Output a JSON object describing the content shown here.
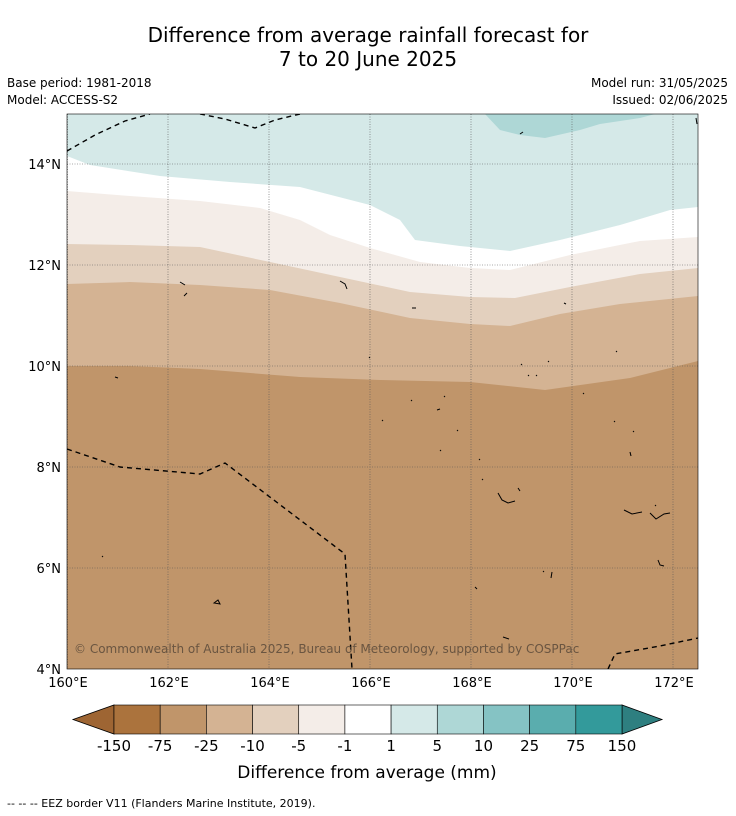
{
  "title": {
    "line1": "Difference from average rainfall forecast for",
    "line2": "7 to 20 June 2025"
  },
  "meta": {
    "base_period": "Base period: 1981-2018",
    "model": "Model: ACCESS-S2",
    "model_run": "Model run: 31/05/2025",
    "issued": "Issued: 02/06/2025"
  },
  "map": {
    "lon_range": [
      160,
      172.5
    ],
    "lat_range": [
      4,
      15
    ],
    "lat_ticks": [
      {
        "value": 14,
        "label": "14°N"
      },
      {
        "value": 12,
        "label": "12°N"
      },
      {
        "value": 10,
        "label": "10°N"
      },
      {
        "value": 8,
        "label": "8°N"
      },
      {
        "value": 6,
        "label": "6°N"
      },
      {
        "value": 4,
        "label": "4°N"
      }
    ],
    "lon_ticks": [
      {
        "value": 160,
        "label": "160°E"
      },
      {
        "value": 162,
        "label": "162°E"
      },
      {
        "value": 164,
        "label": "164°E"
      },
      {
        "value": 166,
        "label": "166°E"
      },
      {
        "value": 168,
        "label": "168°E"
      },
      {
        "value": 170,
        "label": "170°E"
      },
      {
        "value": 172,
        "label": "172°E"
      }
    ],
    "copyright": "© Commonwealth of Australia 2025, Bureau of Meteorology, supported by COSPPac",
    "bands": [
      {
        "name": "-75 to -25",
        "color": "#c0956a"
      },
      {
        "name": "-25 to -10",
        "color": "#d4b393"
      },
      {
        "name": "-10 to -5",
        "color": "#e3d0be"
      },
      {
        "name": "-5 to -1",
        "color": "#f4ede8"
      },
      {
        "name": "-1 to 1",
        "color": "#ffffff"
      },
      {
        "name": "1 to 5",
        "color": "#d5e9e8"
      },
      {
        "name": "5 to 10",
        "color": "#aed7d6"
      }
    ]
  },
  "colorbar": {
    "labels": [
      "-150",
      "-75",
      "-25",
      "-10",
      "-5",
      "-1",
      "1",
      "5",
      "10",
      "25",
      "75",
      "150"
    ],
    "colors": [
      "#ab733d",
      "#c0956a",
      "#d4b393",
      "#e3d0be",
      "#f4ede8",
      "#ffffff",
      "#d5e9e8",
      "#aed7d6",
      "#85c3c4",
      "#5aadae",
      "#339a9b"
    ],
    "low_extend_color": "#9e6533",
    "high_extend_color": "#2e7f80",
    "caption": "Difference from average (mm)"
  },
  "footer": "--  --  -- EEZ border V11 (Flanders Marine Institute, 2019)."
}
